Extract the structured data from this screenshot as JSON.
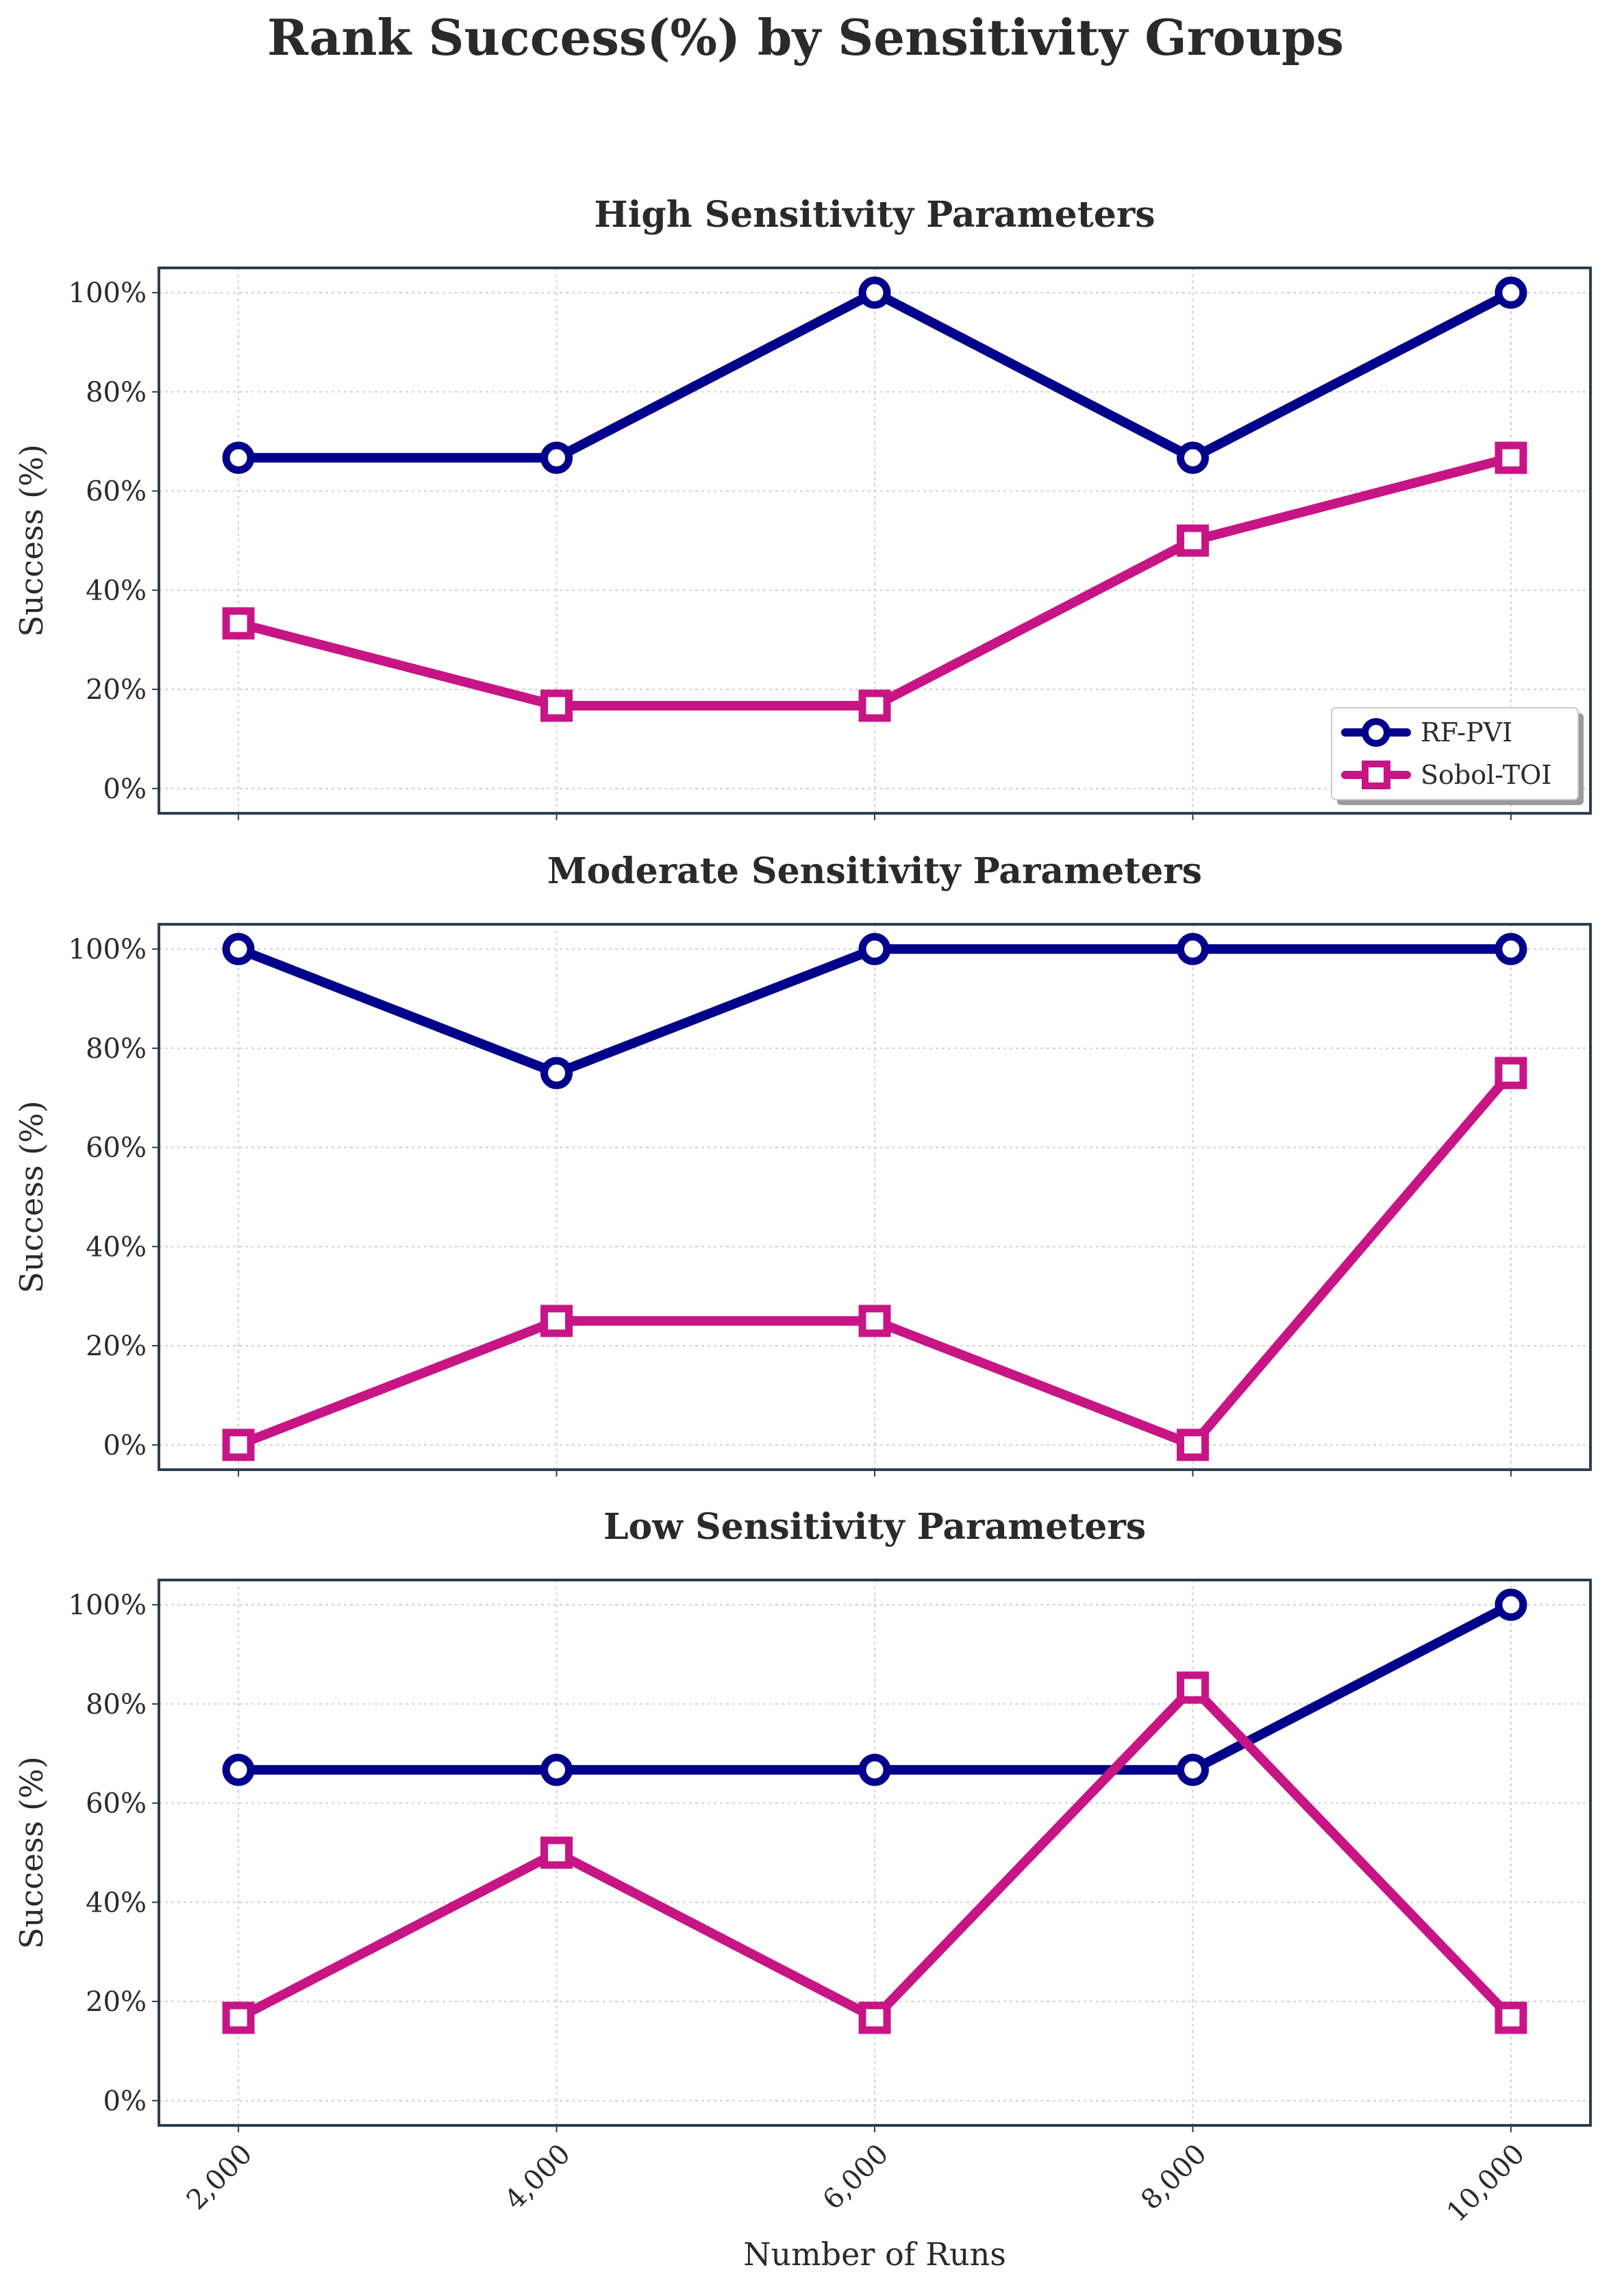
{
  "figure": {
    "title": "Rank Success(%) by Sensitivity Groups"
  },
  "colors": {
    "rf_pvi": "#00008b",
    "sobol_toi": "#c71585",
    "frame": "#2c3e50",
    "grid": "#d0d0d0"
  },
  "chart_data": [
    {
      "type": "line",
      "title": "High Sensitivity Parameters",
      "xlabel": "",
      "ylabel": "Success (%)",
      "x": [
        2000,
        4000,
        6000,
        8000,
        10000
      ],
      "x_tick_labels": [
        "2,000",
        "4,000",
        "6,000",
        "8,000",
        "10,000"
      ],
      "y_tick_labels": [
        "0%",
        "20%",
        "40%",
        "60%",
        "80%",
        "100%"
      ],
      "ylim": [
        -5,
        105
      ],
      "grid": true,
      "legend": "lower-right",
      "series": [
        {
          "name": "RF-PVI",
          "marker": "circle",
          "values": [
            66.7,
            66.7,
            100,
            66.7,
            100
          ]
        },
        {
          "name": "Sobol-TOI",
          "marker": "square",
          "values": [
            33.3,
            16.7,
            16.7,
            50,
            66.7
          ]
        }
      ]
    },
    {
      "type": "line",
      "title": "Moderate Sensitivity Parameters",
      "xlabel": "",
      "ylabel": "Success (%)",
      "x": [
        2000,
        4000,
        6000,
        8000,
        10000
      ],
      "x_tick_labels": [
        "2,000",
        "4,000",
        "6,000",
        "8,000",
        "10,000"
      ],
      "y_tick_labels": [
        "0%",
        "20%",
        "40%",
        "60%",
        "80%",
        "100%"
      ],
      "ylim": [
        -5,
        105
      ],
      "grid": true,
      "series": [
        {
          "name": "RF-PVI",
          "marker": "circle",
          "values": [
            100,
            75,
            100,
            100,
            100
          ]
        },
        {
          "name": "Sobol-TOI",
          "marker": "square",
          "values": [
            0,
            25,
            25,
            0,
            75
          ]
        }
      ]
    },
    {
      "type": "line",
      "title": "Low Sensitivity Parameters",
      "xlabel": "Number of Runs",
      "ylabel": "Success (%)",
      "x": [
        2000,
        4000,
        6000,
        8000,
        10000
      ],
      "x_tick_labels": [
        "2,000",
        "4,000",
        "6,000",
        "8,000",
        "10,000"
      ],
      "y_tick_labels": [
        "0%",
        "20%",
        "40%",
        "60%",
        "80%",
        "100%"
      ],
      "ylim": [
        -5,
        105
      ],
      "grid": true,
      "series": [
        {
          "name": "RF-PVI",
          "marker": "circle",
          "values": [
            66.7,
            66.7,
            66.7,
            66.7,
            100
          ]
        },
        {
          "name": "Sobol-TOI",
          "marker": "square",
          "values": [
            16.7,
            50,
            16.7,
            83.3,
            16.7
          ]
        }
      ]
    }
  ]
}
